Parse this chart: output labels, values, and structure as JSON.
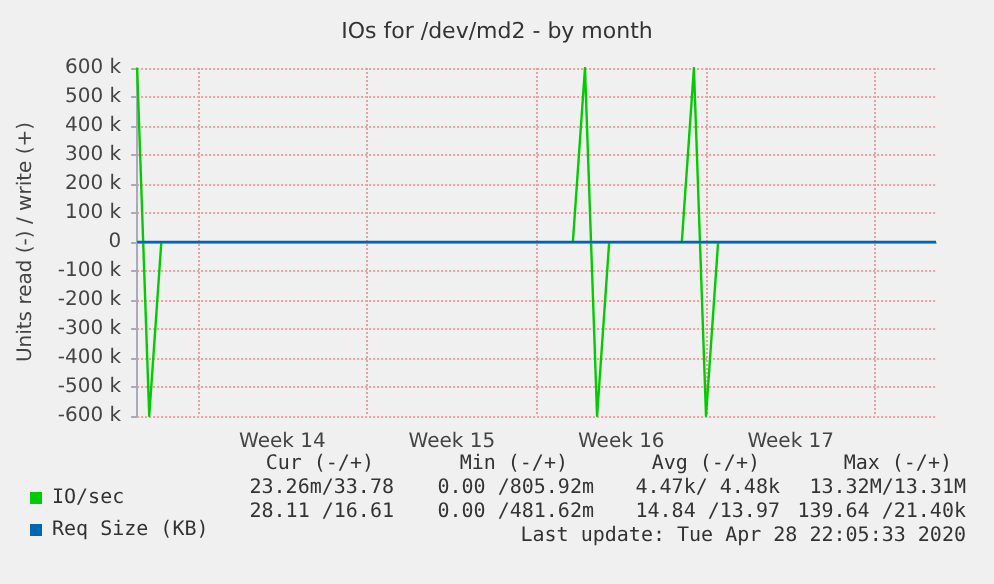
{
  "chart_data": {
    "type": "line",
    "title": "IOs for /dev/md2 - by month",
    "ylabel": "Units read (-) / write (+)",
    "categories": [
      null,
      null,
      null,
      null,
      null,
      null,
      null,
      null,
      null,
      null,
      null,
      null,
      "Week 14",
      null,
      null,
      null,
      null,
      null,
      null,
      null,
      null,
      null,
      null,
      null,
      null,
      null,
      "Week 15",
      null,
      null,
      null,
      null,
      null,
      null,
      null,
      null,
      null,
      null,
      null,
      null,
      null,
      "Week 16",
      null,
      null,
      null,
      null,
      null,
      null,
      null,
      null,
      null,
      null,
      null,
      null,
      null,
      "Week 17",
      null,
      null,
      null,
      null,
      null,
      null,
      null,
      null,
      null,
      null,
      null,
      null
    ],
    "ylim": [
      -600000,
      600000
    ],
    "yticks": [
      {
        "value": -600000,
        "label": "-600 k"
      },
      {
        "value": -500000,
        "label": "-500 k"
      },
      {
        "value": -400000,
        "label": "-400 k"
      },
      {
        "value": -300000,
        "label": "-300 k"
      },
      {
        "value": -200000,
        "label": "-200 k"
      },
      {
        "value": -100000,
        "label": "-100 k"
      },
      0,
      {
        "value": 100000,
        "label": "100 k"
      },
      {
        "value": 200000,
        "label": "200 k"
      },
      {
        "value": 300000,
        "label": "300 k"
      },
      {
        "value": 400000,
        "label": "400 k"
      },
      {
        "value": 500000,
        "label": "500 k"
      },
      {
        "value": 600000,
        "label": "600 k"
      }
    ],
    "series": [
      {
        "name": "IO/sec",
        "color": "#00cc00",
        "values": [
          600000,
          -600000,
          0,
          null,
          null,
          null,
          null,
          null,
          null,
          null,
          null,
          null,
          null,
          null,
          null,
          null,
          null,
          null,
          null,
          null,
          null,
          null,
          null,
          null,
          null,
          null,
          null,
          null,
          null,
          null,
          null,
          null,
          null,
          null,
          null,
          null,
          0,
          600000,
          -600000,
          0,
          null,
          null,
          null,
          null,
          null,
          0,
          600000,
          -600000,
          0,
          null,
          null,
          null,
          null,
          null,
          null,
          null,
          null,
          null,
          null,
          null,
          null,
          null,
          null,
          null,
          null,
          null,
          null
        ]
      },
      {
        "name": "Req Size (KB)",
        "color": "#0066b3",
        "values": [
          0,
          0,
          0,
          0,
          0,
          0,
          0,
          0,
          0,
          0,
          0,
          0,
          0,
          0,
          0,
          0,
          0,
          0,
          0,
          0,
          0,
          0,
          0,
          0,
          0,
          0,
          0,
          0,
          0,
          0,
          0,
          0,
          0,
          0,
          0,
          0,
          0,
          0,
          0,
          0,
          0,
          0,
          0,
          0,
          0,
          0,
          0,
          0,
          0,
          0,
          0,
          0,
          0,
          0,
          0,
          0,
          0,
          0,
          0,
          0,
          0,
          0,
          0,
          0,
          0,
          0,
          0
        ]
      }
    ],
    "grid": true,
    "legend": "bottom left",
    "marker": "none",
    "line_style": "solid",
    "annotations": [
      "Cur (-/+)",
      "Min (-/+)",
      "Avg (-/+)",
      "Max (-/+)",
      "23.26m/33.78",
      "0.00 /805.92m",
      "4.47k/ 4.48k",
      "13.32M/13.31M",
      "28.11 /16.61",
      "0.00 /481.62m",
      "14.84 /13.97",
      "139.64 /21.40k",
      "Last update: Tue Apr 28 22:05:33 2020"
    ]
  }
}
